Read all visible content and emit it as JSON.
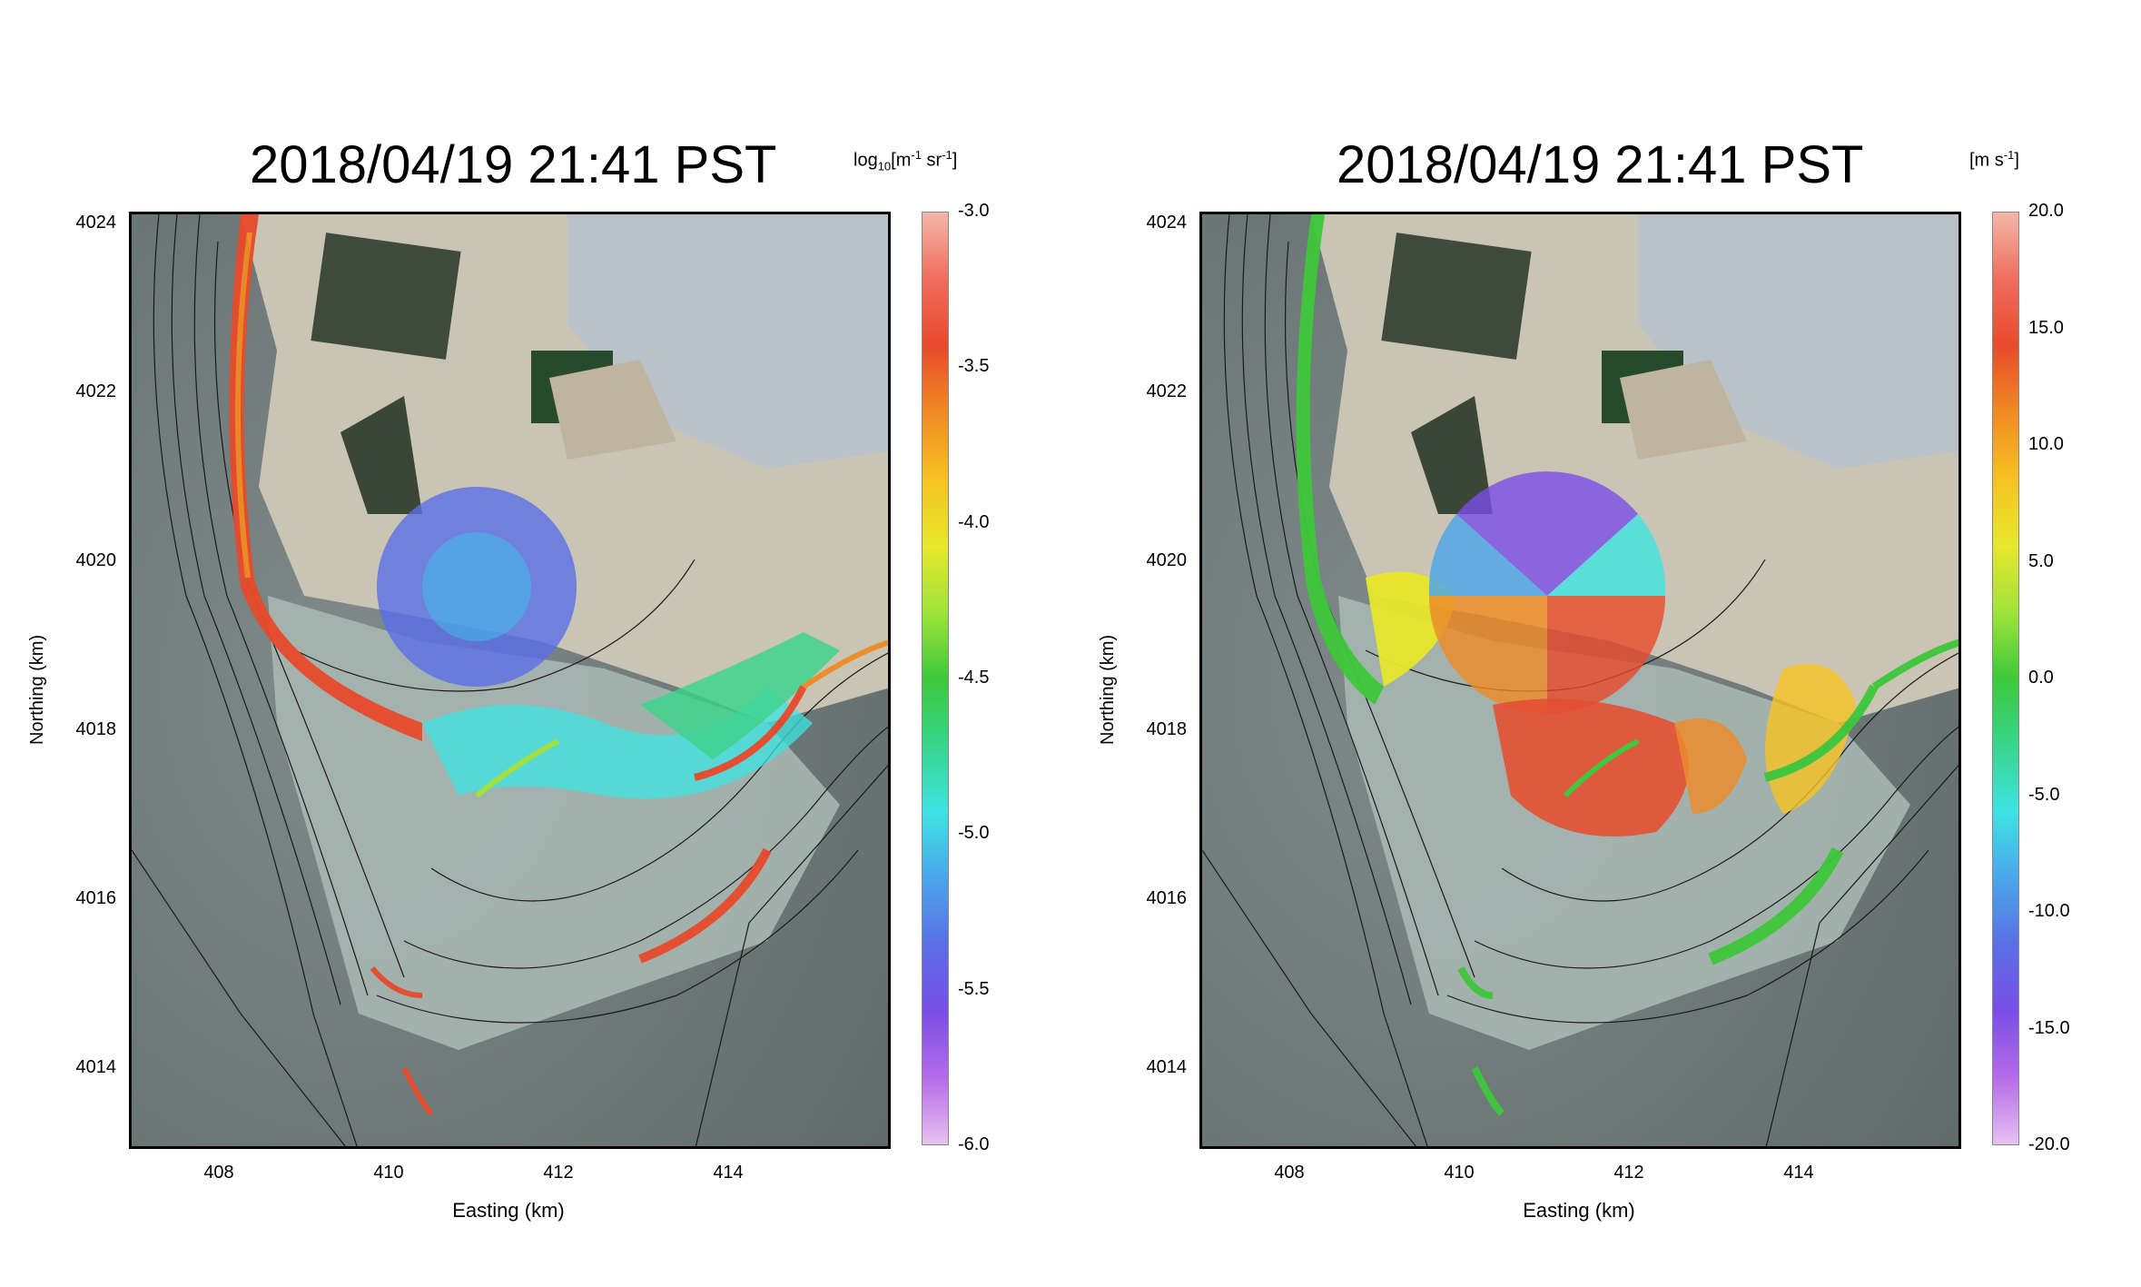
{
  "panels": [
    {
      "title": "2018/04/19 21:41 PST",
      "unit_prefix": "log",
      "unit_sub": "10",
      "unit_main": "[m",
      "unit_sup1": "-1",
      "unit_mid": " sr",
      "unit_sup2": "-1",
      "unit_end": "]",
      "colorbar_ticks": [
        "-3.0",
        "-3.5",
        "-4.0",
        "-4.5",
        "-5.0",
        "-5.5",
        "-6.0"
      ],
      "colorbar": [
        "#f4b7a8",
        "#ef6d5d",
        "#e84a2c",
        "#f08a23",
        "#f6c223",
        "#e7e72c",
        "#9fe33a",
        "#3ec83a",
        "#38d58c",
        "#3ee3e3",
        "#4aa6ea",
        "#5a6fe6",
        "#7a4ee6",
        "#b56be8",
        "#e7c1f0"
      ]
    },
    {
      "title": "2018/04/19 21:41 PST",
      "unit_prefix": "",
      "unit_sub": "",
      "unit_main": "[m s",
      "unit_sup1": "-1",
      "unit_mid": "",
      "unit_sup2": "",
      "unit_end": "]",
      "colorbar_ticks": [
        "20.0",
        "15.0",
        "10.0",
        "5.0",
        "0.0",
        "-5.0",
        "-10.0",
        "-15.0",
        "-20.0"
      ],
      "colorbar": [
        "#f4b7a8",
        "#ef6d5d",
        "#e84a2c",
        "#f08a23",
        "#f6c223",
        "#e7e72c",
        "#9fe33a",
        "#3ec83a",
        "#38d58c",
        "#3ee3e3",
        "#4aa6ea",
        "#5a6fe6",
        "#7a4ee6",
        "#b56be8",
        "#e7c1f0"
      ]
    }
  ],
  "axes": {
    "ylabel": "Northing (km)",
    "xlabel": "Easting (km)",
    "yticks": [
      "4024",
      "4022",
      "4020",
      "4018",
      "4016",
      "4014"
    ],
    "xticks": [
      "408",
      "410",
      "412",
      "414"
    ],
    "xlim": [
      406.9,
      415.9
    ],
    "ylim": [
      4013.0,
      4024.1
    ]
  }
}
